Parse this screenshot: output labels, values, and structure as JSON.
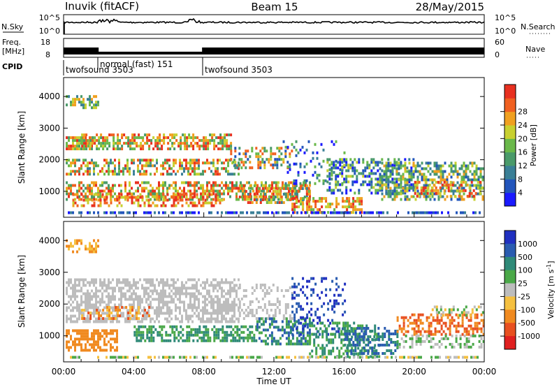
{
  "header": {
    "station": "Inuvik (fitACF)",
    "beam": "Beam 15",
    "date": "28/May/2015"
  },
  "strips": {
    "nsky_label": "N.Sky",
    "nsky_ticks": [
      "10^5",
      "10^0"
    ],
    "nsearch_label": "N.Search",
    "nsearch_ticks": [
      "10^5",
      "10^0"
    ],
    "freq_label_line1": "Freq.",
    "freq_label_line2": "[MHz]",
    "freq_ticks": [
      "18",
      "8"
    ],
    "nave_label": "Nave",
    "nave_ticks": [
      "60",
      "0"
    ],
    "cpid_label": "CPID",
    "cpid_segments": [
      {
        "name": "twofsound 3503",
        "start_h": 0.0,
        "end_h": 2.0
      },
      {
        "name": "normal (fast) 151",
        "start_h": 2.0,
        "end_h": 7.9
      },
      {
        "name": "twofsound 3503",
        "start_h": 7.9,
        "end_h": 24.0
      }
    ]
  },
  "chart_data": [
    {
      "type": "heatmap",
      "title": "Power",
      "ylabel": "Slant Range [km]",
      "xlabel": "",
      "xlim_hours": [
        0,
        24
      ],
      "ylim": [
        180,
        4600
      ],
      "yticks": [
        1000,
        2000,
        3000,
        4000
      ],
      "colorbar": {
        "label": "Power [dB]",
        "ticks": [
          "4",
          "8",
          "12",
          "16",
          "20",
          "24",
          "28"
        ],
        "colors": [
          "#1a1aff",
          "#2255bb",
          "#3a7f96",
          "#4a9a6a",
          "#6ab84a",
          "#c8d030",
          "#f0a020",
          "#f06020",
          "#e83020"
        ]
      }
    },
    {
      "type": "heatmap",
      "title": "Velocity",
      "ylabel": "Slant Range [km]",
      "xlabel": "Time UT",
      "xlim_hours": [
        0,
        24
      ],
      "ylim": [
        180,
        4600
      ],
      "yticks": [
        1000,
        2000,
        3000,
        4000
      ],
      "xticks": [
        "00:00",
        "04:00",
        "08:00",
        "12:00",
        "16:00",
        "20:00",
        "00:00"
      ],
      "colorbar": {
        "label": "Velocity [m s^-1]",
        "ticks": [
          "1000",
          "500",
          "100",
          "25",
          "-25",
          "-100",
          "-500",
          "-1000"
        ],
        "colors": [
          "#2030c0",
          "#2a5cb0",
          "#2f8a78",
          "#4aa848",
          "#bdbdbd",
          "#f5c040",
          "#f08a20",
          "#e85020",
          "#e02020"
        ]
      }
    }
  ]
}
